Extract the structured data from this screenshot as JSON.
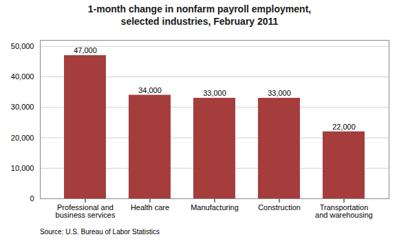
{
  "chart_data": {
    "type": "bar",
    "title": "1-month change in nonfarm payroll employment,\nselected industries, February 2011",
    "categories": [
      "Professional and\nbusiness services",
      "Health care",
      "Manufacturing",
      "Construction",
      "Transportation\nand warehousing"
    ],
    "values": [
      47000,
      34000,
      33000,
      33000,
      22000
    ],
    "value_labels": [
      "47,000",
      "34,000",
      "33,000",
      "33,000",
      "22,000"
    ],
    "data_labels": true,
    "color": "#A63D3D",
    "ylim": [
      0,
      52000
    ],
    "yticks": [
      0,
      {
        "value": 10000,
        "label": "10,000"
      },
      {
        "value": 20000,
        "label": "20,000"
      },
      {
        "value": 30000,
        "label": "30,000"
      },
      {
        "value": 40000,
        "label": "40,000"
      },
      {
        "value": 50000,
        "label": "50,000"
      }
    ],
    "grid": true,
    "annotation": "Source: U.S. Bureau of Labor Statistics"
  }
}
